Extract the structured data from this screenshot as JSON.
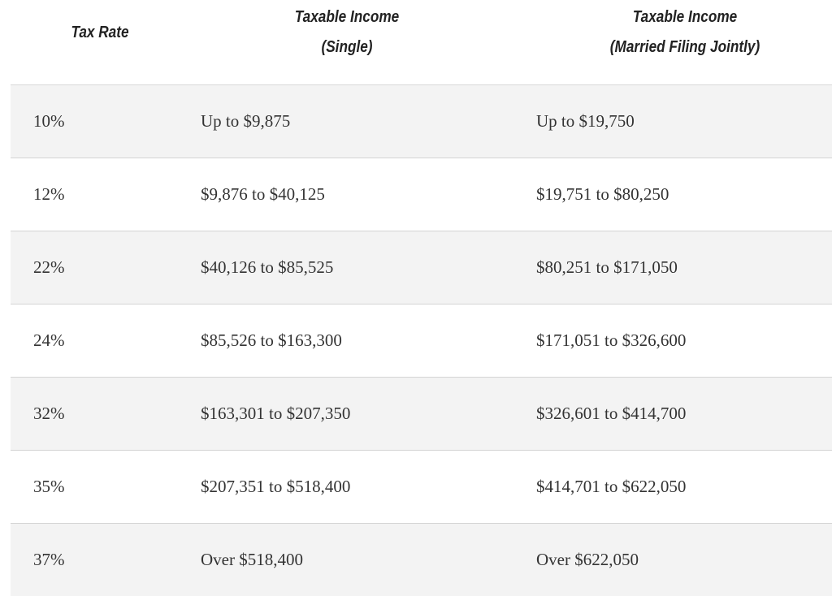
{
  "table": {
    "headers": {
      "rate": [
        "Tax Rate"
      ],
      "single": [
        "Taxable Income",
        "(Single)"
      ],
      "married": [
        "Taxable Income",
        "(Married Filing Jointly)"
      ]
    },
    "rows": [
      {
        "rate": "10%",
        "single": "Up to $9,875",
        "married": "Up to $19,750"
      },
      {
        "rate": "12%",
        "single": "$9,876 to $40,125",
        "married": "$19,751 to $80,250"
      },
      {
        "rate": "22%",
        "single": "$40,126 to $85,525",
        "married": "$80,251 to $171,050"
      },
      {
        "rate": "24%",
        "single": "$85,526 to $163,300",
        "married": "$171,051 to $326,600"
      },
      {
        "rate": "32%",
        "single": "$163,301 to $207,350",
        "married": "$326,601 to $414,700"
      },
      {
        "rate": "35%",
        "single": "$207,351 to $518,400",
        "married": "$414,701 to $622,050"
      },
      {
        "rate": "37%",
        "single": "Over $518,400",
        "married": "Over $622,050"
      }
    ]
  }
}
